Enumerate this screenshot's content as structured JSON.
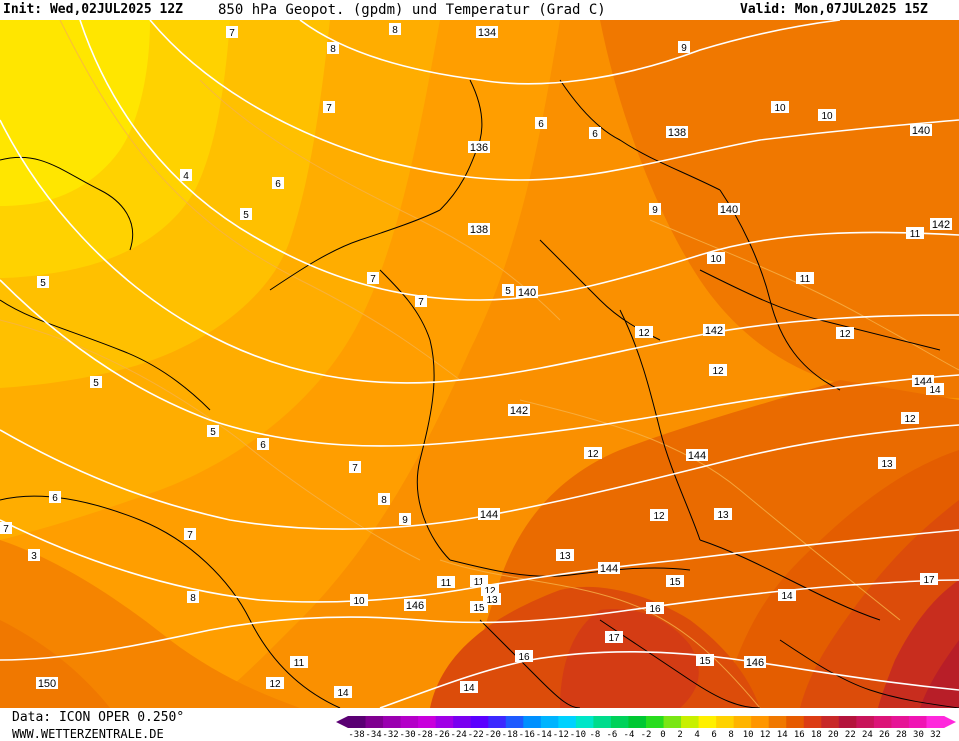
{
  "header": {
    "init": "Init: Wed,02JUL2025 12Z",
    "title": "850 hPa Geopot. (gpdm) und Temperatur (Grad C)",
    "valid": "Valid: Mon,07JUL2025 15Z"
  },
  "footer": {
    "data": "Data: ICON OPER 0.250°",
    "site": "WWW.WETTERZENTRALE.DE"
  },
  "legend": {
    "ticks": [
      "-38",
      "-34",
      "-32",
      "-30",
      "-28",
      "-26",
      "-24",
      "-22",
      "-20",
      "-18",
      "-16",
      "-14",
      "-12",
      "-10",
      "-8",
      "-6",
      "-4",
      "-2",
      "0",
      "2",
      "4",
      "6",
      "8",
      "10",
      "12",
      "14",
      "16",
      "18",
      "20",
      "22",
      "24",
      "26",
      "28",
      "30",
      "32"
    ],
    "colors": [
      "#5a0073",
      "#7f0090",
      "#9a00b0",
      "#b400c8",
      "#c800dc",
      "#a000e6",
      "#7a00f0",
      "#5a00ff",
      "#3c28ff",
      "#1e5aff",
      "#0090ff",
      "#00b4ff",
      "#00d2ff",
      "#00e6c8",
      "#00dc8c",
      "#00d25a",
      "#00c832",
      "#28dc1e",
      "#7ae614",
      "#c8f000",
      "#fff000",
      "#ffd200",
      "#ffb400",
      "#ff9600",
      "#f07800",
      "#e65a00",
      "#dc3c14",
      "#c82828",
      "#b4143c",
      "#c8145a",
      "#dc1478",
      "#e61496",
      "#f014b4",
      "#ff28dc"
    ]
  },
  "map": {
    "colors": {
      "band4": "#ffe600",
      "band5": "#ffd200",
      "band6": "#ffc000",
      "band7": "#ffad00",
      "band8": "#ff9e00",
      "band9": "#fa9000",
      "band10": "#f58400",
      "band11": "#f07800",
      "band12": "#ea6b00",
      "band13": "#e45d00",
      "band14": "#dc4c0a",
      "band15": "#d43c14",
      "band16": "#c82d1e",
      "band17": "#b81e28"
    },
    "geopotential_labels": [
      "134",
      "136",
      "138",
      "138",
      "140",
      "140",
      "140",
      "142",
      "142",
      "142",
      "144",
      "144",
      "144",
      "144",
      "146",
      "146",
      "150"
    ],
    "temperature_labels": [
      "7",
      "8",
      "8",
      "9",
      "7",
      "6",
      "4",
      "5",
      "5",
      "5",
      "5",
      "6",
      "7",
      "7",
      "7",
      "6",
      "6",
      "5",
      "8",
      "9",
      "7",
      "8",
      "9",
      "10",
      "10",
      "10",
      "11",
      "11",
      "12",
      "12",
      "12",
      "12",
      "12",
      "13",
      "13",
      "12",
      "13",
      "14",
      "15",
      "15",
      "16",
      "16",
      "17",
      "17",
      "14",
      "14",
      "15",
      "11",
      "11",
      "12",
      "13",
      "10",
      "11",
      "12",
      "14",
      "3",
      "6",
      "7"
    ]
  }
}
